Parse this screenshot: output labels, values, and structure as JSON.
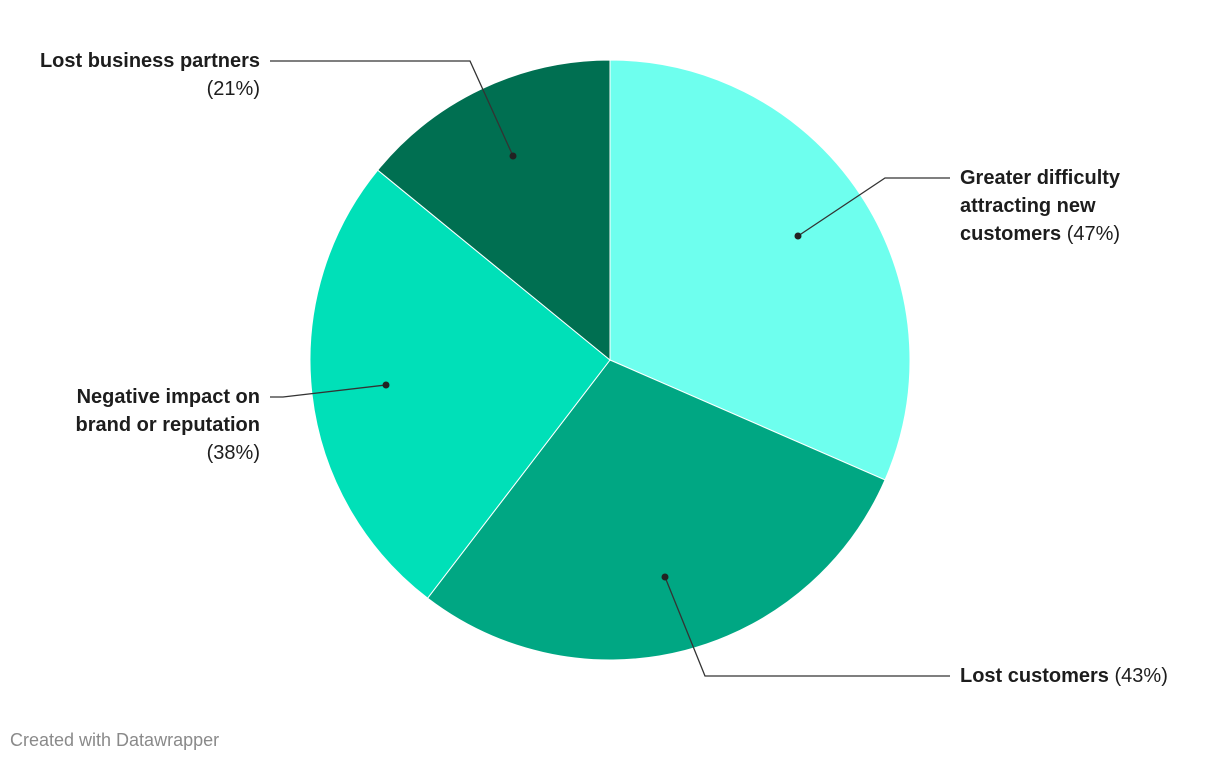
{
  "chart_data": {
    "type": "pie",
    "categories": [
      "Greater difficulty attracting new customers",
      "Lost customers",
      "Negative impact on brand or reputation",
      "Lost business partners"
    ],
    "values": [
      47,
      43,
      38,
      21
    ],
    "value_labels": [
      "(47%)",
      "(43%)",
      "(38%)",
      "(21%)"
    ],
    "colors": [
      "#6effee",
      "#00a783",
      "#00e0b8",
      "#006f51"
    ]
  },
  "footer": "Created with Datawrapper"
}
